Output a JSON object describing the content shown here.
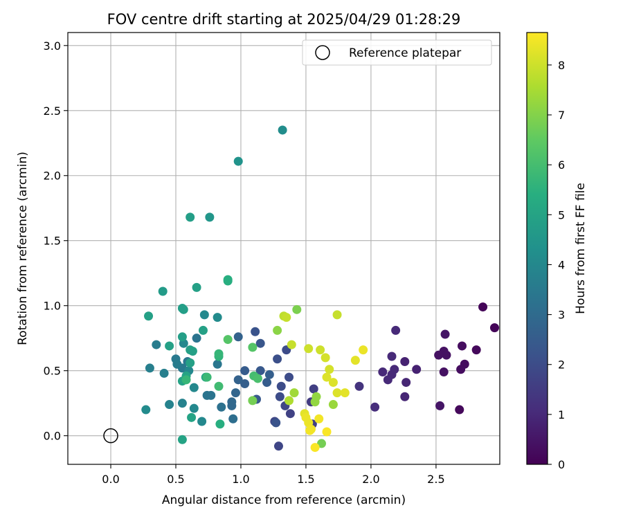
{
  "chart_data": {
    "type": "scatter",
    "title": "FOV centre drift starting at 2025/04/29 01:28:29",
    "xlabel": "Angular distance from reference (arcmin)",
    "ylabel": "Rotation from reference (arcmin)",
    "xlim": [
      -0.33,
      2.99
    ],
    "ylim": [
      -0.22,
      3.1
    ],
    "xticks": [
      "0.0",
      "0.5",
      "1.0",
      "1.5",
      "2.0",
      "2.5"
    ],
    "xtick_values": [
      0.0,
      0.5,
      1.0,
      1.5,
      2.0,
      2.5
    ],
    "yticks": [
      "0.0",
      "0.5",
      "1.0",
      "1.5",
      "2.0",
      "2.5",
      "3.0"
    ],
    "ytick_values": [
      0.0,
      0.5,
      1.0,
      1.5,
      2.0,
      2.5,
      3.0
    ],
    "grid": true,
    "colormap": "viridis",
    "colorbar": {
      "label": "Hours from first FF file",
      "min": 0,
      "max": 8.65,
      "ticks": [
        "0",
        "1",
        "2",
        "3",
        "4",
        "5",
        "6",
        "7",
        "8"
      ],
      "tick_values": [
        0,
        1,
        2,
        3,
        4,
        5,
        6,
        7,
        8
      ]
    },
    "legend": {
      "position": "top-right",
      "label": "Reference platepar"
    },
    "reference_point": {
      "x": 0.0,
      "y": 0.0
    },
    "points": [
      {
        "x": 2.86,
        "y": 0.99,
        "c": 0.1
      },
      {
        "x": 2.95,
        "y": 0.83,
        "c": 0.1
      },
      {
        "x": 2.81,
        "y": 0.66,
        "c": 0.2
      },
      {
        "x": 2.7,
        "y": 0.69,
        "c": 0.3
      },
      {
        "x": 2.72,
        "y": 0.55,
        "c": 0.3
      },
      {
        "x": 2.69,
        "y": 0.51,
        "c": 0.3
      },
      {
        "x": 2.68,
        "y": 0.2,
        "c": 0.2
      },
      {
        "x": 2.57,
        "y": 0.78,
        "c": 0.5
      },
      {
        "x": 2.56,
        "y": 0.65,
        "c": 0.4
      },
      {
        "x": 2.58,
        "y": 0.62,
        "c": 0.4
      },
      {
        "x": 2.56,
        "y": 0.49,
        "c": 0.4
      },
      {
        "x": 2.52,
        "y": 0.62,
        "c": 0.4
      },
      {
        "x": 2.53,
        "y": 0.23,
        "c": 0.5
      },
      {
        "x": 2.35,
        "y": 0.51,
        "c": 0.8
      },
      {
        "x": 2.26,
        "y": 0.57,
        "c": 0.8
      },
      {
        "x": 2.27,
        "y": 0.41,
        "c": 0.9
      },
      {
        "x": 2.26,
        "y": 0.3,
        "c": 0.9
      },
      {
        "x": 2.19,
        "y": 0.81,
        "c": 1.0
      },
      {
        "x": 2.16,
        "y": 0.61,
        "c": 1.0
      },
      {
        "x": 2.18,
        "y": 0.51,
        "c": 1.0
      },
      {
        "x": 2.16,
        "y": 0.47,
        "c": 1.0
      },
      {
        "x": 2.13,
        "y": 0.43,
        "c": 1.0
      },
      {
        "x": 2.09,
        "y": 0.49,
        "c": 1.0
      },
      {
        "x": 2.03,
        "y": 0.22,
        "c": 1.1
      },
      {
        "x": 1.91,
        "y": 0.38,
        "c": 1.3
      },
      {
        "x": 1.54,
        "y": 0.26,
        "c": 1.5
      },
      {
        "x": 1.56,
        "y": 0.36,
        "c": 1.6
      },
      {
        "x": 1.55,
        "y": 0.09,
        "c": 1.6
      },
      {
        "x": 1.38,
        "y": 0.17,
        "c": 1.7
      },
      {
        "x": 1.34,
        "y": 0.23,
        "c": 1.8
      },
      {
        "x": 1.26,
        "y": 0.11,
        "c": 1.8
      },
      {
        "x": 1.29,
        "y": -0.08,
        "c": 1.8
      },
      {
        "x": 1.3,
        "y": 0.3,
        "c": 2.0
      },
      {
        "x": 1.31,
        "y": 0.38,
        "c": 2.0
      },
      {
        "x": 1.35,
        "y": 0.66,
        "c": 2.0
      },
      {
        "x": 1.37,
        "y": 0.45,
        "c": 2.0
      },
      {
        "x": 1.28,
        "y": 0.59,
        "c": 2.1
      },
      {
        "x": 1.11,
        "y": 0.8,
        "c": 2.2
      },
      {
        "x": 1.15,
        "y": 0.71,
        "c": 2.3
      },
      {
        "x": 1.15,
        "y": 0.5,
        "c": 2.4
      },
      {
        "x": 1.12,
        "y": 0.28,
        "c": 2.4
      },
      {
        "x": 1.2,
        "y": 0.41,
        "c": 2.5
      },
      {
        "x": 1.22,
        "y": 0.47,
        "c": 2.6
      },
      {
        "x": 1.27,
        "y": 0.1,
        "c": 2.2
      },
      {
        "x": 1.03,
        "y": 0.5,
        "c": 2.5
      },
      {
        "x": 1.03,
        "y": 0.4,
        "c": 2.6
      },
      {
        "x": 0.98,
        "y": 0.76,
        "c": 2.7
      },
      {
        "x": 0.98,
        "y": 0.43,
        "c": 2.7
      },
      {
        "x": 0.96,
        "y": 0.33,
        "c": 2.8
      },
      {
        "x": 0.93,
        "y": 0.26,
        "c": 2.9
      },
      {
        "x": 0.93,
        "y": 0.23,
        "c": 2.9
      },
      {
        "x": 0.94,
        "y": 0.13,
        "c": 3.1
      },
      {
        "x": 0.85,
        "y": 0.22,
        "c": 3.2
      },
      {
        "x": 0.77,
        "y": 0.31,
        "c": 3.3
      },
      {
        "x": 0.74,
        "y": 0.31,
        "c": 3.3
      },
      {
        "x": 0.82,
        "y": 0.55,
        "c": 3.4
      },
      {
        "x": 0.66,
        "y": 0.75,
        "c": 3.3
      },
      {
        "x": 0.59,
        "y": 0.57,
        "c": 3.4
      },
      {
        "x": 0.55,
        "y": 0.52,
        "c": 3.5
      },
      {
        "x": 0.5,
        "y": 0.59,
        "c": 3.5
      },
      {
        "x": 0.51,
        "y": 0.55,
        "c": 3.6
      },
      {
        "x": 0.35,
        "y": 0.7,
        "c": 3.6
      },
      {
        "x": 0.3,
        "y": 0.52,
        "c": 3.7
      },
      {
        "x": 0.41,
        "y": 0.48,
        "c": 3.7
      },
      {
        "x": 0.45,
        "y": 0.24,
        "c": 3.8
      },
      {
        "x": 0.55,
        "y": 0.25,
        "c": 3.8
      },
      {
        "x": 0.64,
        "y": 0.21,
        "c": 4.0
      },
      {
        "x": 0.7,
        "y": 0.11,
        "c": 4.0
      },
      {
        "x": 0.64,
        "y": 0.37,
        "c": 4.0
      },
      {
        "x": 0.6,
        "y": 0.5,
        "c": 4.0
      },
      {
        "x": 0.56,
        "y": 0.71,
        "c": 4.0
      },
      {
        "x": 0.72,
        "y": 0.93,
        "c": 4.0
      },
      {
        "x": 0.82,
        "y": 0.91,
        "c": 4.1
      },
      {
        "x": 0.27,
        "y": 0.2,
        "c": 4.1
      },
      {
        "x": 1.32,
        "y": 2.35,
        "c": 4.2
      },
      {
        "x": 0.98,
        "y": 2.11,
        "c": 4.4
      },
      {
        "x": 0.76,
        "y": 1.68,
        "c": 4.5
      },
      {
        "x": 0.61,
        "y": 1.68,
        "c": 4.8
      },
      {
        "x": 0.4,
        "y": 1.11,
        "c": 4.7
      },
      {
        "x": 0.66,
        "y": 1.14,
        "c": 4.9
      },
      {
        "x": 0.55,
        "y": 0.98,
        "c": 4.8
      },
      {
        "x": 0.56,
        "y": 0.97,
        "c": 4.8
      },
      {
        "x": 0.29,
        "y": 0.92,
        "c": 4.9
      },
      {
        "x": 0.55,
        "y": 0.76,
        "c": 4.8
      },
      {
        "x": 0.61,
        "y": 0.66,
        "c": 4.9
      },
      {
        "x": 0.63,
        "y": 0.65,
        "c": 4.9
      },
      {
        "x": 0.71,
        "y": 0.81,
        "c": 4.9
      },
      {
        "x": 0.45,
        "y": 0.69,
        "c": 4.9
      },
      {
        "x": 0.61,
        "y": 0.56,
        "c": 4.9
      },
      {
        "x": 0.58,
        "y": 0.46,
        "c": 5.0
      },
      {
        "x": 0.55,
        "y": 0.42,
        "c": 5.0
      },
      {
        "x": 0.62,
        "y": 0.14,
        "c": 5.0
      },
      {
        "x": 0.55,
        "y": -0.03,
        "c": 5.0
      },
      {
        "x": 0.73,
        "y": 0.45,
        "c": 5.1
      },
      {
        "x": 0.9,
        "y": 1.2,
        "c": 5.4
      },
      {
        "x": 0.9,
        "y": 1.19,
        "c": 5.4
      },
      {
        "x": 0.84,
        "y": 0.09,
        "c": 5.4
      },
      {
        "x": 0.83,
        "y": 0.61,
        "c": 5.6
      },
      {
        "x": 0.83,
        "y": 0.63,
        "c": 5.7
      },
      {
        "x": 0.58,
        "y": 0.43,
        "c": 5.7
      },
      {
        "x": 0.74,
        "y": 0.45,
        "c": 5.8
      },
      {
        "x": 0.83,
        "y": 0.38,
        "c": 5.9
      },
      {
        "x": 1.1,
        "y": 0.46,
        "c": 6.0
      },
      {
        "x": 1.13,
        "y": 0.44,
        "c": 6.1
      },
      {
        "x": 1.09,
        "y": 0.68,
        "c": 6.3
      },
      {
        "x": 0.9,
        "y": 0.74,
        "c": 6.3
      },
      {
        "x": 1.09,
        "y": 0.27,
        "c": 6.8
      },
      {
        "x": 1.62,
        "y": -0.06,
        "c": 6.8
      },
      {
        "x": 1.43,
        "y": 0.97,
        "c": 6.9
      },
      {
        "x": 1.28,
        "y": 0.81,
        "c": 7.1
      },
      {
        "x": 1.58,
        "y": 0.3,
        "c": 7.2
      },
      {
        "x": 1.57,
        "y": 0.26,
        "c": 7.2
      },
      {
        "x": 1.71,
        "y": 0.24,
        "c": 7.3
      },
      {
        "x": 1.41,
        "y": 0.33,
        "c": 7.4
      },
      {
        "x": 1.37,
        "y": 0.27,
        "c": 7.6
      },
      {
        "x": 1.33,
        "y": 0.92,
        "c": 7.8
      },
      {
        "x": 1.35,
        "y": 0.91,
        "c": 7.9
      },
      {
        "x": 1.74,
        "y": 0.93,
        "c": 7.9
      },
      {
        "x": 1.39,
        "y": 0.7,
        "c": 7.9
      },
      {
        "x": 1.52,
        "y": 0.67,
        "c": 8.0
      },
      {
        "x": 1.61,
        "y": 0.66,
        "c": 8.0
      },
      {
        "x": 1.65,
        "y": 0.6,
        "c": 8.1
      },
      {
        "x": 1.68,
        "y": 0.51,
        "c": 8.1
      },
      {
        "x": 1.66,
        "y": 0.45,
        "c": 8.2
      },
      {
        "x": 1.71,
        "y": 0.41,
        "c": 8.2
      },
      {
        "x": 1.74,
        "y": 0.33,
        "c": 8.2
      },
      {
        "x": 1.8,
        "y": 0.33,
        "c": 8.3
      },
      {
        "x": 1.88,
        "y": 0.58,
        "c": 8.3
      },
      {
        "x": 1.94,
        "y": 0.66,
        "c": 8.4
      },
      {
        "x": 1.49,
        "y": 0.17,
        "c": 8.3
      },
      {
        "x": 1.5,
        "y": 0.14,
        "c": 8.4
      },
      {
        "x": 1.52,
        "y": 0.1,
        "c": 8.4
      },
      {
        "x": 1.54,
        "y": 0.05,
        "c": 8.5
      },
      {
        "x": 1.53,
        "y": 0.04,
        "c": 8.5
      },
      {
        "x": 1.6,
        "y": 0.13,
        "c": 8.5
      },
      {
        "x": 1.66,
        "y": 0.03,
        "c": 8.6
      },
      {
        "x": 1.57,
        "y": -0.09,
        "c": 8.6
      }
    ]
  }
}
